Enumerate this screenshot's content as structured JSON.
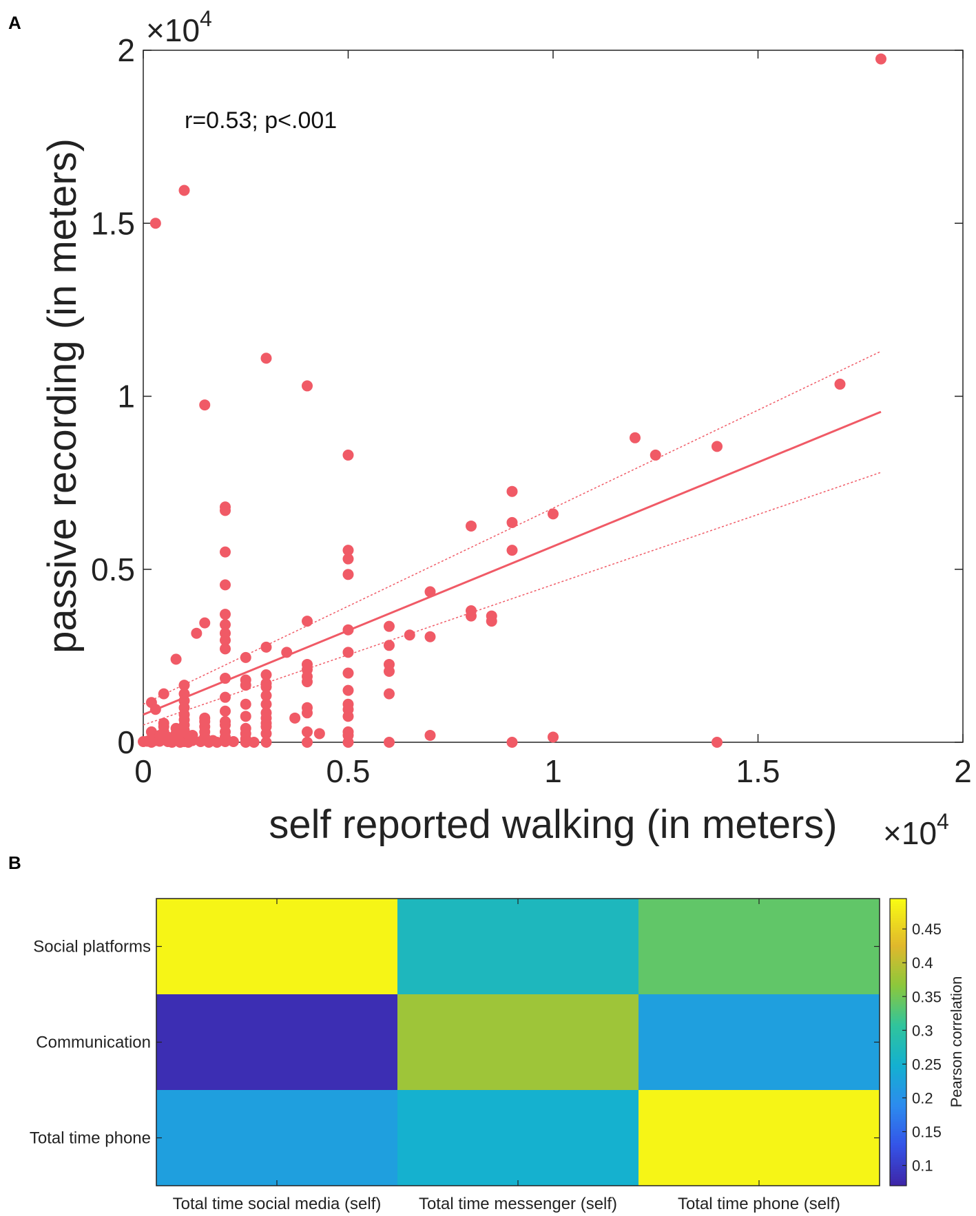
{
  "chart_data": [
    {
      "panel": "A",
      "type": "scatter",
      "xlabel": "self reported walking (in meters)",
      "ylabel": "passive recording (in meters)",
      "x_multiplier": "×10",
      "x_exponent": "4",
      "y_multiplier": "×10",
      "y_exponent": "4",
      "xlim": [
        0,
        2
      ],
      "ylim": [
        0,
        2
      ],
      "xticks": [
        0,
        0.5,
        1,
        1.5,
        2
      ],
      "yticks": [
        0,
        0.5,
        1,
        1.5,
        2
      ],
      "xtick_labels": [
        "0",
        "0.5",
        "1",
        "1.5",
        "2"
      ],
      "ytick_labels": [
        "0",
        "0.5",
        "1",
        "1.5",
        "2"
      ],
      "annotation": "r=0.53; p<.001",
      "point_color": "#f05a66",
      "fit_line": {
        "x": [
          0,
          1.8
        ],
        "y": [
          0.08,
          0.955
        ]
      },
      "ci_upper": {
        "x": [
          0,
          1.8
        ],
        "y": [
          0.11,
          1.13
        ]
      },
      "ci_lower": {
        "x": [
          0,
          1.8
        ],
        "y": [
          0.05,
          0.78
        ]
      },
      "points": [
        [
          1.8,
          1.975
        ],
        [
          0.1,
          1.595
        ],
        [
          0.03,
          1.5
        ],
        [
          0.3,
          1.11
        ],
        [
          0.4,
          1.03
        ],
        [
          1.7,
          1.035
        ],
        [
          0.15,
          0.975
        ],
        [
          1.2,
          0.88
        ],
        [
          1.25,
          0.83
        ],
        [
          0.5,
          0.83
        ],
        [
          1.4,
          0.855
        ],
        [
          0.9,
          0.725
        ],
        [
          0.2,
          0.68
        ],
        [
          0.2,
          0.67
        ],
        [
          1.0,
          0.66
        ],
        [
          0.9,
          0.635
        ],
        [
          0.8,
          0.625
        ],
        [
          0.2,
          0.55
        ],
        [
          0.5,
          0.555
        ],
        [
          0.5,
          0.53
        ],
        [
          0.9,
          0.555
        ],
        [
          0.5,
          0.485
        ],
        [
          0.2,
          0.455
        ],
        [
          0.7,
          0.435
        ],
        [
          0.8,
          0.38
        ],
        [
          0.8,
          0.365
        ],
        [
          0.85,
          0.365
        ],
        [
          0.85,
          0.35
        ],
        [
          0.2,
          0.37
        ],
        [
          0.2,
          0.34
        ],
        [
          0.15,
          0.345
        ],
        [
          0.4,
          0.35
        ],
        [
          0.6,
          0.335
        ],
        [
          0.5,
          0.325
        ],
        [
          0.13,
          0.315
        ],
        [
          0.2,
          0.315
        ],
        [
          0.65,
          0.31
        ],
        [
          0.7,
          0.305
        ],
        [
          0.2,
          0.295
        ],
        [
          0.6,
          0.28
        ],
        [
          0.3,
          0.275
        ],
        [
          0.2,
          0.27
        ],
        [
          0.35,
          0.26
        ],
        [
          0.5,
          0.26
        ],
        [
          0.25,
          0.245
        ],
        [
          0.08,
          0.24
        ],
        [
          0.4,
          0.225
        ],
        [
          0.6,
          0.225
        ],
        [
          0.4,
          0.21
        ],
        [
          0.6,
          0.205
        ],
        [
          0.5,
          0.2
        ],
        [
          0.3,
          0.195
        ],
        [
          0.4,
          0.19
        ],
        [
          0.2,
          0.185
        ],
        [
          0.25,
          0.18
        ],
        [
          0.4,
          0.175
        ],
        [
          0.3,
          0.17
        ],
        [
          0.25,
          0.165
        ],
        [
          0.1,
          0.165
        ],
        [
          0.3,
          0.16
        ],
        [
          0.5,
          0.15
        ],
        [
          0.6,
          0.14
        ],
        [
          0.05,
          0.14
        ],
        [
          0.1,
          0.14
        ],
        [
          0.3,
          0.135
        ],
        [
          0.2,
          0.13
        ],
        [
          0.1,
          0.12
        ],
        [
          0.02,
          0.115
        ],
        [
          0.25,
          0.11
        ],
        [
          0.5,
          0.11
        ],
        [
          0.3,
          0.11
        ],
        [
          0.1,
          0.1
        ],
        [
          0.4,
          0.1
        ],
        [
          0.03,
          0.095
        ],
        [
          0.5,
          0.095
        ],
        [
          0.2,
          0.09
        ],
        [
          0.4,
          0.085
        ],
        [
          0.3,
          0.085
        ],
        [
          0.1,
          0.08
        ],
        [
          0.25,
          0.075
        ],
        [
          0.5,
          0.075
        ],
        [
          0.37,
          0.07
        ],
        [
          0.3,
          0.07
        ],
        [
          0.15,
          0.07
        ],
        [
          0.1,
          0.065
        ],
        [
          0.2,
          0.06
        ],
        [
          0.15,
          0.06
        ],
        [
          0.05,
          0.055
        ],
        [
          0.3,
          0.055
        ],
        [
          0.1,
          0.05
        ],
        [
          0.2,
          0.05
        ],
        [
          0.05,
          0.045
        ],
        [
          0.15,
          0.045
        ],
        [
          0.3,
          0.045
        ],
        [
          0.08,
          0.04
        ],
        [
          0.25,
          0.04
        ],
        [
          0.1,
          0.035
        ],
        [
          0.4,
          0.03
        ],
        [
          0.02,
          0.03
        ],
        [
          0.05,
          0.03
        ],
        [
          0.15,
          0.03
        ],
        [
          0.2,
          0.03
        ],
        [
          0.5,
          0.03
        ],
        [
          0.08,
          0.025
        ],
        [
          0.43,
          0.025
        ],
        [
          0.1,
          0.025
        ],
        [
          0.25,
          0.025
        ],
        [
          0.3,
          0.025
        ],
        [
          0.12,
          0.02
        ],
        [
          0.04,
          0.02
        ],
        [
          0.7,
          0.02
        ],
        [
          0.5,
          0.02
        ],
        [
          0.15,
          0.015
        ],
        [
          0.06,
          0.015
        ],
        [
          0.2,
          0.015
        ],
        [
          1.0,
          0.015
        ],
        [
          0.1,
          0.012
        ],
        [
          0.02,
          0.01
        ],
        [
          0.05,
          0.01
        ],
        [
          0.25,
          0.01
        ],
        [
          0.08,
          0.008
        ],
        [
          0.03,
          0.005
        ],
        [
          0.12,
          0.005
        ],
        [
          0.17,
          0.005
        ],
        [
          0.01,
          0.003
        ],
        [
          0.04,
          0.003
        ],
        [
          0.0,
          0.002
        ],
        [
          0.06,
          0.002
        ],
        [
          0.1,
          0.002
        ],
        [
          0.14,
          0.002
        ],
        [
          0.2,
          0.002
        ],
        [
          0.22,
          0.002
        ],
        [
          0.3,
          0.0
        ],
        [
          0.4,
          0.0
        ],
        [
          0.5,
          0.0
        ],
        [
          0.6,
          0.0
        ],
        [
          0.9,
          0.0
        ],
        [
          1.4,
          0.0
        ],
        [
          0.02,
          0.0
        ],
        [
          0.07,
          0.0
        ],
        [
          0.09,
          0.0
        ],
        [
          0.11,
          0.0
        ],
        [
          0.16,
          0.0
        ],
        [
          0.18,
          0.0
        ],
        [
          0.25,
          0.0
        ],
        [
          0.27,
          0.0
        ]
      ]
    },
    {
      "panel": "B",
      "type": "heatmap",
      "rows": [
        "Social platforms",
        "Communication",
        "Total time phone"
      ],
      "columns": [
        "Total time social media (self)",
        "Total time messenger (self)",
        "Total time phone (self)"
      ],
      "values": [
        [
          0.49,
          0.27,
          0.34
        ],
        [
          0.08,
          0.38,
          0.22
        ],
        [
          0.22,
          0.25,
          0.49
        ]
      ],
      "colorbar": {
        "label": "Pearson correlation",
        "min": 0.07,
        "max": 0.495,
        "ticks": [
          0.1,
          0.15,
          0.2,
          0.25,
          0.3,
          0.35,
          0.4,
          0.45
        ],
        "tick_labels": [
          "0.1",
          "0.15",
          "0.2",
          "0.25",
          "0.3",
          "0.35",
          "0.4",
          "0.45"
        ]
      }
    }
  ],
  "panel_labels": {
    "a": "A",
    "b": "B"
  }
}
